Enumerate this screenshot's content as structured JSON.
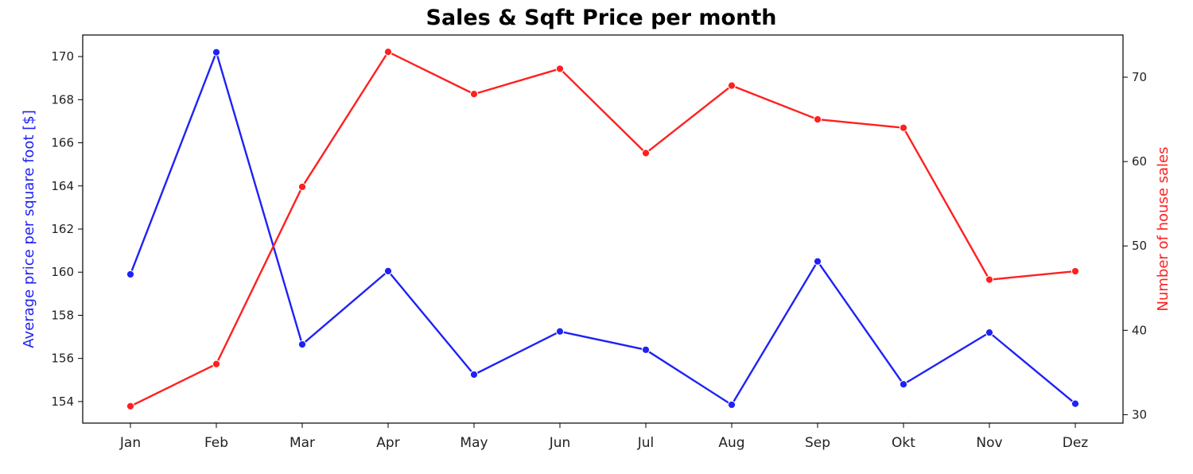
{
  "chart_data": {
    "type": "line",
    "title": "Sales & Sqft Price per month",
    "categories": [
      "Jan",
      "Feb",
      "Mar",
      "Apr",
      "May",
      "Jun",
      "Jul",
      "Aug",
      "Sep",
      "Okt",
      "Nov",
      "Dez"
    ],
    "left_axis": {
      "label": "Average price per square foot [$]",
      "ylim": [
        153.0,
        171.0
      ],
      "ticks": [
        154,
        156,
        158,
        160,
        162,
        164,
        166,
        168,
        170
      ],
      "color": "#1f22f5"
    },
    "right_axis": {
      "label": "Number of house sales",
      "ylim": [
        29.0,
        75.0
      ],
      "ticks": [
        30,
        40,
        50,
        60,
        70
      ],
      "color": "#ff2020"
    },
    "series": [
      {
        "axis": "left",
        "color": "#1f22f5",
        "values": [
          159.9,
          170.2,
          156.65,
          160.05,
          155.25,
          157.25,
          156.4,
          153.85,
          160.5,
          154.8,
          157.2,
          153.9
        ]
      },
      {
        "axis": "right",
        "color": "#ff2020",
        "values": [
          31,
          36,
          57,
          73,
          68,
          71,
          61,
          69,
          65,
          64,
          46,
          47
        ]
      }
    ],
    "grid": false,
    "markers": "circle"
  }
}
